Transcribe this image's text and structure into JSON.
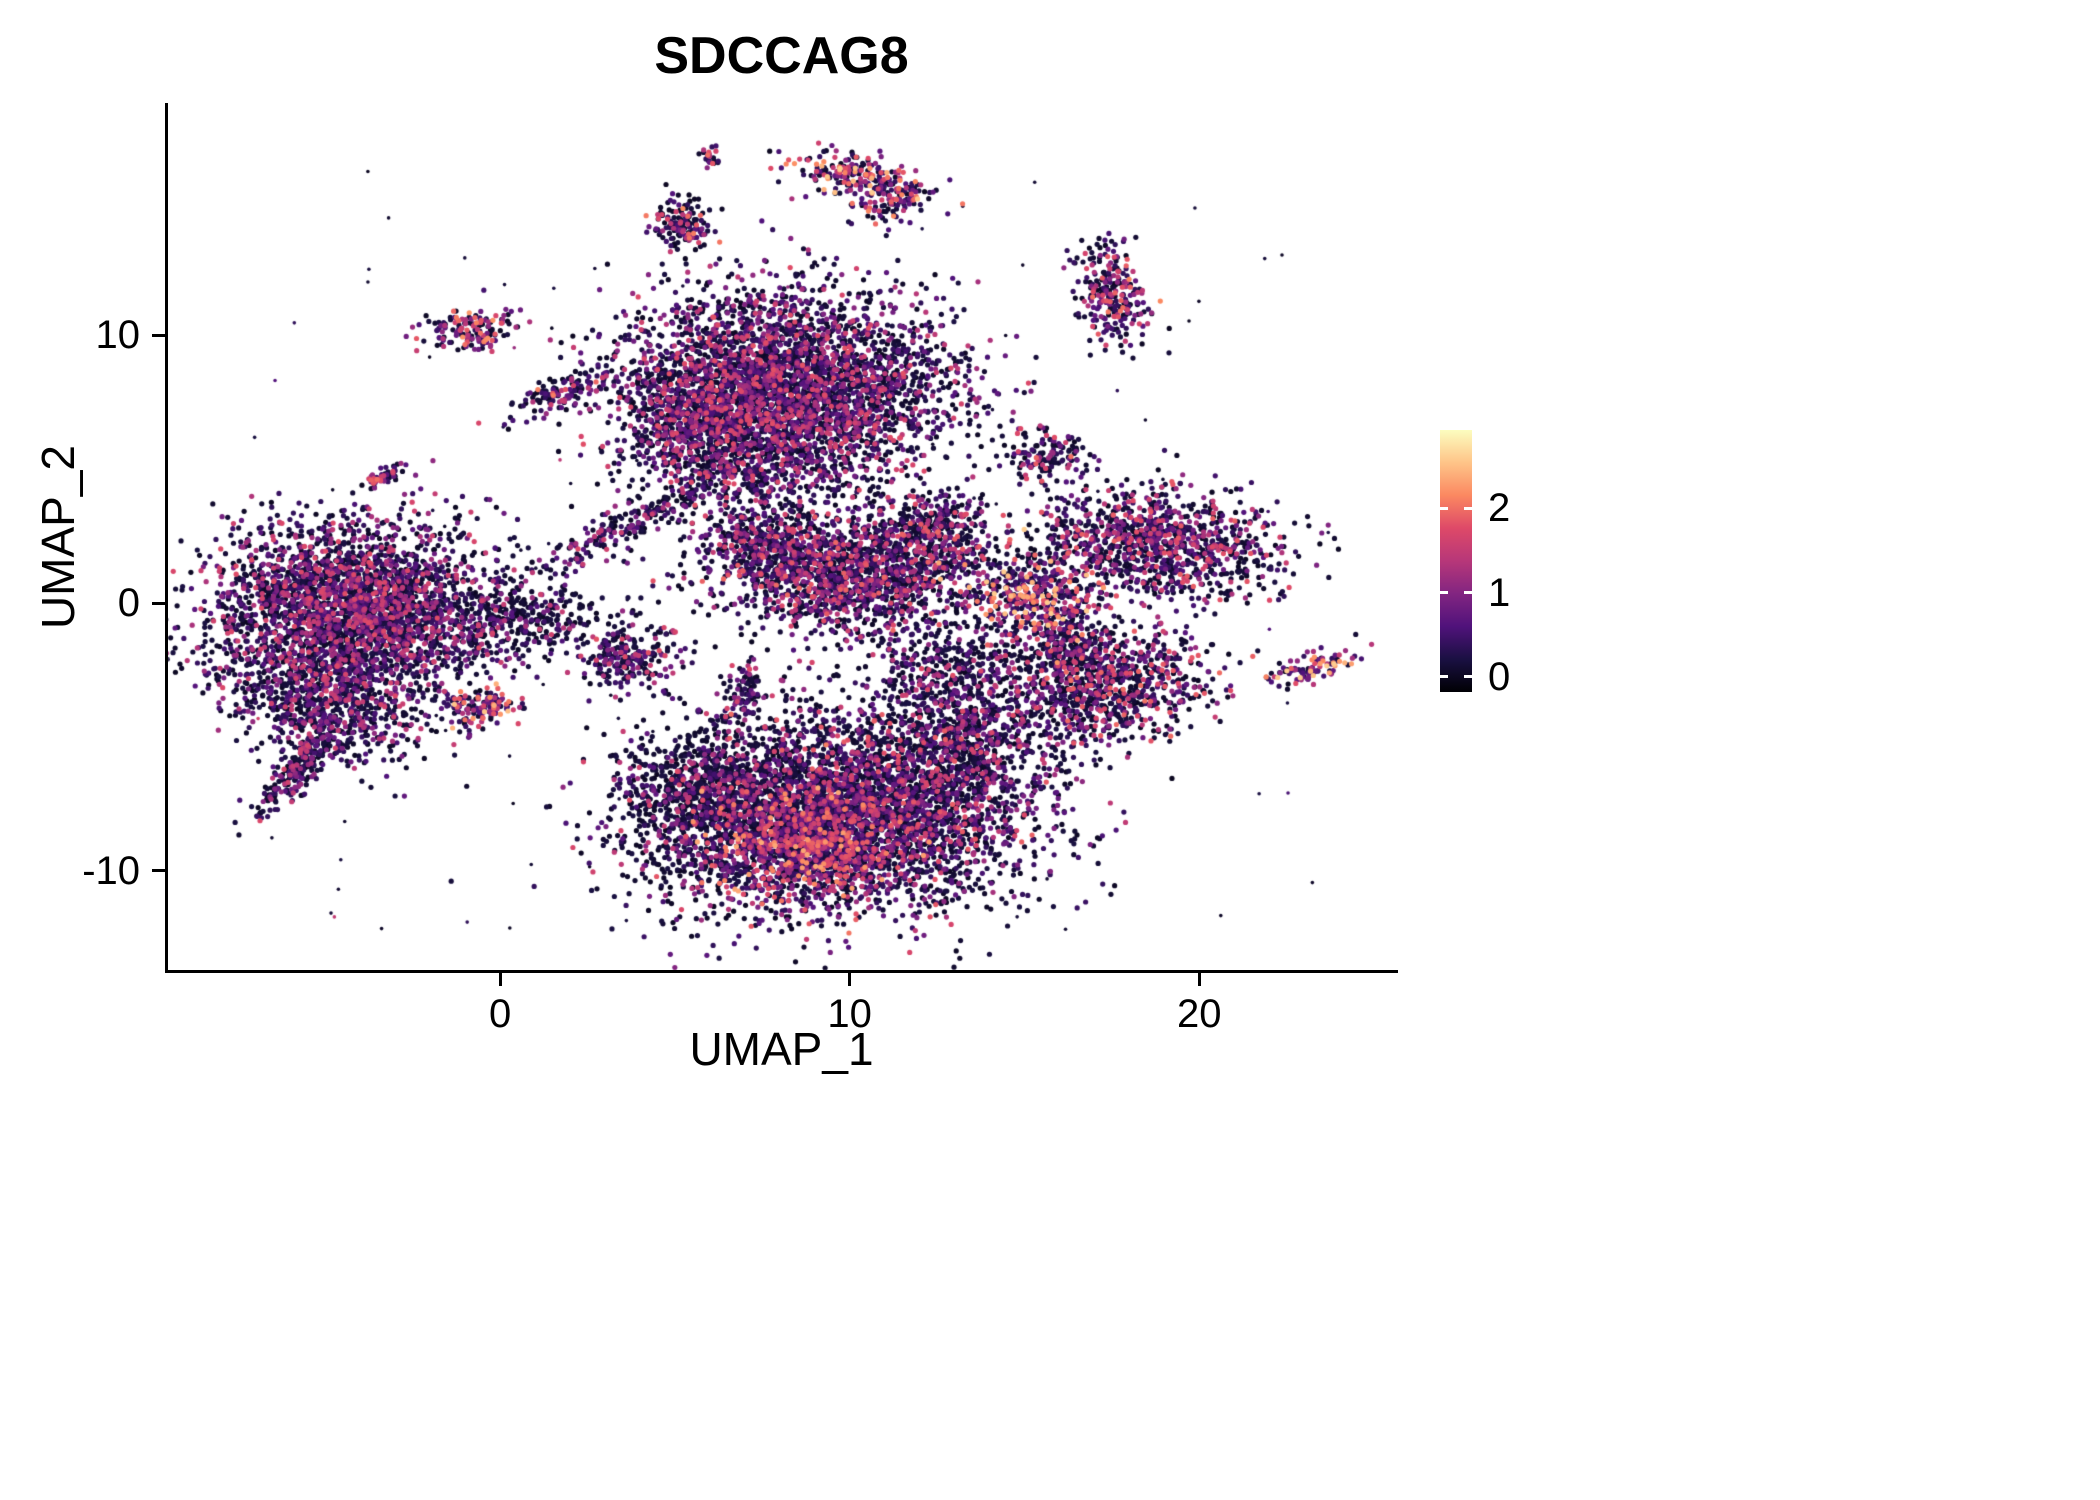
{
  "chart_data": {
    "type": "scatter",
    "title": "SDCCAG8",
    "xlabel": "UMAP_1",
    "ylabel": "UMAP_2",
    "x_ticks": [
      0,
      10,
      20
    ],
    "y_ticks": [
      -10,
      0,
      10
    ],
    "x_range": [
      -9.5,
      25.6
    ],
    "y_range": [
      -13.7,
      18.6
    ],
    "grid": false,
    "background": "#ffffff",
    "axis_color": "#000000",
    "text_color": "#000000",
    "point_radius_px": 2.6,
    "point_count_approx": 22700,
    "legend": {
      "position": "right",
      "kind": "colorbar",
      "ticks": [
        0,
        1,
        2
      ],
      "value_range": [
        -0.18,
        2.93
      ],
      "colormap": "magma",
      "stops": [
        "#000004",
        "#1a1042",
        "#50127b",
        "#822581",
        "#b73779",
        "#de4968",
        "#fb8861",
        "#fec488",
        "#fcfdbf"
      ]
    },
    "clusters": [
      {
        "name": "left-main",
        "cx": -4.2,
        "cy": -0.3,
        "sx": 2.1,
        "sy": 1.6,
        "rot": 0.1,
        "n": 3200,
        "dark": 0.52,
        "hot": 0.28
      },
      {
        "name": "left-lower-lobe",
        "cx": -5.0,
        "cy": -3.8,
        "sx": 1.4,
        "sy": 1.0,
        "rot": -0.4,
        "n": 650,
        "dark": 0.6,
        "hot": 0.2
      },
      {
        "name": "left-tail",
        "cx": -5.8,
        "cy": -6.2,
        "sx": 1.1,
        "sy": 0.28,
        "rot": 1.0,
        "n": 240,
        "dark": 0.55,
        "hot": 0.25
      },
      {
        "name": "top-main",
        "cx": 8.2,
        "cy": 8.0,
        "sx": 2.3,
        "sy": 1.8,
        "rot": 0,
        "n": 3800,
        "dark": 0.5,
        "hot": 0.3
      },
      {
        "name": "top-left-lobe",
        "cx": 5.6,
        "cy": 6.9,
        "sx": 1.0,
        "sy": 1.1,
        "rot": 0,
        "n": 550,
        "dark": 0.5,
        "hot": 0.3
      },
      {
        "name": "top-below-spray",
        "cx": 7.3,
        "cy": 4.7,
        "sx": 1.6,
        "sy": 1.3,
        "rot": 0,
        "n": 420,
        "dark": 0.55,
        "hot": 0.3
      },
      {
        "name": "mid-main",
        "cx": 9.9,
        "cy": 1.1,
        "sx": 1.9,
        "sy": 1.1,
        "rot": -0.1,
        "n": 1700,
        "dark": 0.48,
        "hot": 0.38
      },
      {
        "name": "mid-right-arm",
        "cx": 12.5,
        "cy": 2.7,
        "sx": 0.8,
        "sy": 0.8,
        "rot": 0,
        "n": 330,
        "dark": 0.5,
        "hot": 0.35
      },
      {
        "name": "mid-left-bits",
        "cx": 7.4,
        "cy": 2.2,
        "sx": 0.7,
        "sy": 0.6,
        "rot": 0,
        "n": 190,
        "dark": 0.5,
        "hot": 0.3
      },
      {
        "name": "bottom-main",
        "cx": 9.9,
        "cy": -7.7,
        "sx": 2.7,
        "sy": 1.9,
        "rot": 0.1,
        "n": 4200,
        "dark": 0.55,
        "hot": 0.35
      },
      {
        "name": "bottom-hot-core",
        "cx": 9.0,
        "cy": -9.0,
        "sx": 1.5,
        "sy": 1.1,
        "rot": 0.2,
        "n": 900,
        "dark": 0.28,
        "hot": 0.6
      },
      {
        "name": "bottom-dark-left",
        "cx": 5.6,
        "cy": -7.2,
        "sx": 1.1,
        "sy": 1.3,
        "rot": 0,
        "n": 680,
        "dark": 0.78,
        "hot": 0.12
      },
      {
        "name": "bottom-right-ext",
        "cx": 13.4,
        "cy": -4.9,
        "sx": 1.2,
        "sy": 1.4,
        "rot": 0,
        "n": 600,
        "dark": 0.62,
        "hot": 0.25
      },
      {
        "name": "mid-bottom-bridge",
        "cx": 12.8,
        "cy": -2.3,
        "sx": 1.2,
        "sy": 0.9,
        "rot": 0,
        "n": 260,
        "dark": 0.65,
        "hot": 0.2
      },
      {
        "name": "right-main",
        "cx": 18.8,
        "cy": 2.2,
        "sx": 1.8,
        "sy": 1.0,
        "rot": -0.12,
        "n": 1100,
        "dark": 0.52,
        "hot": 0.35
      },
      {
        "name": "right-hot",
        "cx": 15.2,
        "cy": 0.2,
        "sx": 0.9,
        "sy": 0.85,
        "rot": 0,
        "n": 420,
        "dark": 0.3,
        "hot": 0.75
      },
      {
        "name": "right-lower",
        "cx": 17.4,
        "cy": -3.1,
        "sx": 1.5,
        "sy": 1.0,
        "rot": 0.25,
        "n": 850,
        "dark": 0.5,
        "hot": 0.4
      },
      {
        "name": "right-bridge",
        "cx": 16.2,
        "cy": -1.4,
        "sx": 0.7,
        "sy": 0.8,
        "rot": 0,
        "n": 230,
        "dark": 0.55,
        "hot": 0.3
      },
      {
        "name": "top-arc",
        "cx": 10.4,
        "cy": 15.9,
        "sx": 1.0,
        "sy": 0.38,
        "rot": -0.25,
        "n": 230,
        "dark": 0.3,
        "hot": 0.75
      },
      {
        "name": "top-arc-tail",
        "cx": 11.2,
        "cy": 15.0,
        "sx": 0.5,
        "sy": 0.3,
        "rot": 0.5,
        "n": 80,
        "dark": 0.45,
        "hot": 0.5
      },
      {
        "name": "small-upper-left",
        "cx": 5.2,
        "cy": 14.1,
        "sx": 0.45,
        "sy": 0.5,
        "rot": 0,
        "n": 150,
        "dark": 0.45,
        "hot": 0.5
      },
      {
        "name": "tiny-top-dot",
        "cx": 6.0,
        "cy": 16.6,
        "sx": 0.15,
        "sy": 0.2,
        "rot": 0,
        "n": 22,
        "dark": 0.5,
        "hot": 0.4
      },
      {
        "name": "right-top",
        "cx": 17.5,
        "cy": 11.5,
        "sx": 0.45,
        "sy": 0.95,
        "rot": 0.15,
        "n": 260,
        "dark": 0.45,
        "hot": 0.5
      },
      {
        "name": "left-top-small",
        "cx": -0.9,
        "cy": 10.2,
        "sx": 0.75,
        "sy": 0.38,
        "rot": 0.1,
        "n": 150,
        "dark": 0.4,
        "hot": 0.6
      },
      {
        "name": "diag-small",
        "cx": 1.8,
        "cy": 7.9,
        "sx": 0.8,
        "sy": 0.28,
        "rot": 0.5,
        "n": 130,
        "dark": 0.5,
        "hot": 0.45
      },
      {
        "name": "tiny-left",
        "cx": -3.2,
        "cy": 4.8,
        "sx": 0.35,
        "sy": 0.14,
        "rot": 0.55,
        "n": 55,
        "dark": 0.5,
        "hot": 0.4
      },
      {
        "name": "small-below-left",
        "cx": -0.6,
        "cy": -3.9,
        "sx": 0.65,
        "sy": 0.33,
        "rot": 0.1,
        "n": 140,
        "dark": 0.35,
        "hot": 0.7
      },
      {
        "name": "small-central",
        "cx": 3.6,
        "cy": -1.9,
        "sx": 0.75,
        "sy": 0.65,
        "rot": 0,
        "n": 260,
        "dark": 0.55,
        "hot": 0.3
      },
      {
        "name": "small-central-2",
        "cx": 6.9,
        "cy": -3.3,
        "sx": 0.3,
        "sy": 0.55,
        "rot": 0,
        "n": 85,
        "dark": 0.5,
        "hot": 0.4
      },
      {
        "name": "small-right-upper",
        "cx": 15.6,
        "cy": 5.6,
        "sx": 0.6,
        "sy": 0.5,
        "rot": 0,
        "n": 140,
        "dark": 0.5,
        "hot": 0.45
      },
      {
        "name": "far-right",
        "cx": 23.2,
        "cy": -2.4,
        "sx": 0.75,
        "sy": 0.25,
        "rot": 0.35,
        "n": 100,
        "dark": 0.22,
        "hot": 0.85
      },
      {
        "name": "connector-stream",
        "cx": 3.6,
        "cy": 2.9,
        "sx": 1.3,
        "sy": 0.3,
        "rot": 0.55,
        "n": 200,
        "dark": 0.55,
        "hot": 0.3
      },
      {
        "name": "left-bridge",
        "cx": 0.7,
        "cy": -0.5,
        "sx": 1.1,
        "sy": 0.65,
        "rot": 0.1,
        "n": 260,
        "dark": 0.6,
        "hot": 0.25
      },
      {
        "name": "sparse-noise",
        "cx": 8.2,
        "cy": 2.2,
        "sx": 15.5,
        "sy": 14.5,
        "rot": 0,
        "n": 130,
        "dark": 0.8,
        "hot": 0.2,
        "r": 1.8,
        "uniform": true
      }
    ]
  }
}
